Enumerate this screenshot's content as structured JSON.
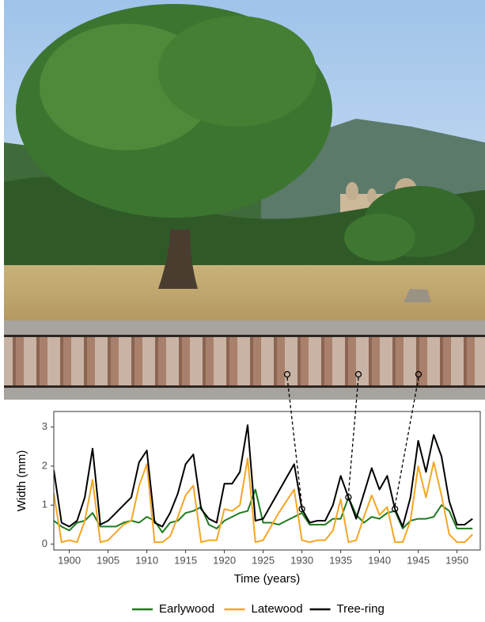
{
  "chart_data": {
    "type": "line",
    "x": [
      1898,
      1899,
      1900,
      1901,
      1902,
      1903,
      1904,
      1905,
      1906,
      1907,
      1908,
      1909,
      1910,
      1911,
      1912,
      1913,
      1914,
      1915,
      1916,
      1917,
      1918,
      1919,
      1920,
      1921,
      1922,
      1923,
      1924,
      1925,
      1926,
      1927,
      1928,
      1929,
      1930,
      1931,
      1932,
      1933,
      1934,
      1935,
      1936,
      1937,
      1938,
      1939,
      1940,
      1941,
      1942,
      1943,
      1944,
      1945,
      1946,
      1947,
      1948,
      1949,
      1950,
      1951,
      1952
    ],
    "series": [
      {
        "name": "Earlywood",
        "color": "#1e7b1e",
        "values": [
          0.6,
          0.45,
          0.35,
          0.55,
          0.6,
          0.8,
          0.45,
          0.45,
          0.45,
          0.55,
          0.6,
          0.55,
          0.7,
          0.6,
          0.3,
          0.55,
          0.6,
          0.8,
          0.85,
          0.95,
          0.5,
          0.4,
          0.6,
          0.7,
          0.8,
          0.85,
          1.4,
          0.55,
          0.55,
          0.5,
          0.6,
          0.7,
          0.8,
          0.5,
          0.5,
          0.5,
          0.65,
          0.65,
          1.2,
          0.75,
          0.55,
          0.7,
          0.65,
          0.8,
          0.85,
          0.4,
          0.6,
          0.65,
          0.65,
          0.7,
          1.0,
          0.85,
          0.4,
          0.4,
          0.4
        ]
      },
      {
        "name": "Latewood",
        "color": "#f5a623",
        "values": [
          1.3,
          0.05,
          0.1,
          0.05,
          0.6,
          1.65,
          0.05,
          0.1,
          0.3,
          0.5,
          0.6,
          1.5,
          2.05,
          0.05,
          0.05,
          0.2,
          0.7,
          1.25,
          1.5,
          0.05,
          0.1,
          0.1,
          0.9,
          0.85,
          1.0,
          2.2,
          0.05,
          0.1,
          0.45,
          0.8,
          1.1,
          1.4,
          0.1,
          0.05,
          0.1,
          0.1,
          0.35,
          1.15,
          0.05,
          0.1,
          0.7,
          1.25,
          0.75,
          0.95,
          0.05,
          0.05,
          0.6,
          2.0,
          1.2,
          2.1,
          1.25,
          0.25,
          0.05,
          0.05,
          0.25
        ]
      },
      {
        "name": "Tree-ring",
        "color": "#000000",
        "values": [
          1.9,
          0.55,
          0.45,
          0.6,
          1.2,
          2.45,
          0.5,
          0.6,
          0.8,
          1.0,
          1.2,
          2.1,
          2.4,
          0.55,
          0.45,
          0.8,
          1.3,
          2.05,
          2.3,
          0.9,
          0.65,
          0.55,
          1.55,
          1.55,
          1.85,
          3.05,
          0.6,
          0.65,
          1.0,
          1.35,
          1.7,
          2.05,
          0.9,
          0.55,
          0.6,
          0.6,
          1.0,
          1.75,
          1.2,
          0.65,
          1.3,
          1.95,
          1.4,
          1.75,
          0.9,
          0.45,
          1.2,
          2.65,
          1.85,
          2.8,
          2.25,
          1.1,
          0.5,
          0.5,
          0.65
        ]
      }
    ],
    "highlight_x": [
      1930,
      1936,
      1942
    ],
    "xlabel": "Time (years)",
    "ylabel": "Width (mm)",
    "xlim": [
      1898,
      1953
    ],
    "ylim": [
      -0.15,
      3.4
    ],
    "xticks": [
      1900,
      1905,
      1910,
      1915,
      1920,
      1925,
      1930,
      1935,
      1940,
      1945,
      1950
    ],
    "yticks": [
      0,
      1,
      2,
      3
    ],
    "legend": "bottom"
  }
}
